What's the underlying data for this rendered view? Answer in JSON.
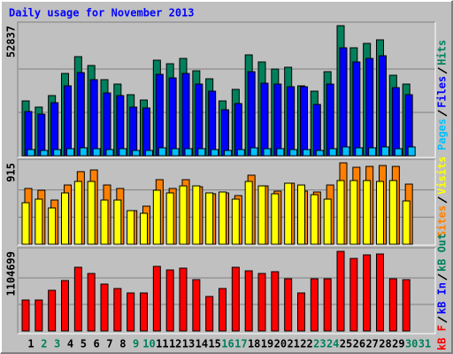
{
  "chart_data": [
    {
      "type": "bar",
      "title": "Daily usage for November 2013",
      "ylim": [
        0,
        52837
      ],
      "yticks": [
        52837
      ],
      "series": [
        {
          "name": "Hits",
          "color": "#00805c",
          "values": [
            22283,
            19768,
            24440,
            33426,
            40254,
            36660,
            30910,
            29112,
            24800,
            22643,
            38817,
            37379,
            39535,
            34504,
            31270,
            22283,
            26956,
            40974,
            38098,
            35223,
            35942,
            28394,
            26237,
            34145,
            52837,
            43850,
            45646,
            47083,
            32707,
            29112,
            null
          ]
        },
        {
          "name": "Files",
          "color": "#0000ff",
          "values": [
            17970,
            16892,
            21564,
            28393,
            33784,
            30909,
            25517,
            24439,
            19767,
            19408,
            33065,
            31627,
            33424,
            29111,
            26236,
            18689,
            21205,
            34143,
            29471,
            29111,
            28033,
            28033,
            20845,
            29111,
            43847,
            38096,
            39534,
            40612,
            27674,
            24799,
            null
          ]
        },
        {
          "name": "Pages",
          "color": "#00c0ff",
          "values": [
            2516,
            2156,
            2516,
            2875,
            3234,
            2875,
            2516,
            2875,
            2156,
            2156,
            3234,
            2875,
            2875,
            2875,
            2516,
            2156,
            2516,
            3234,
            2875,
            2875,
            2516,
            2516,
            2156,
            2875,
            3594,
            3234,
            3234,
            3594,
            2875,
            3594,
            null
          ]
        }
      ]
    },
    {
      "type": "bar",
      "ylim": [
        0,
        915
      ],
      "yticks": [
        915
      ],
      "series": [
        {
          "name": "Sites",
          "color": "#ff8000",
          "values": [
            627,
            607,
            497,
            666,
            816,
            835,
            666,
            627,
            378,
            428,
            726,
            627,
            726,
            646,
            567,
            577,
            547,
            776,
            656,
            597,
            686,
            597,
            587,
            666,
            915,
            865,
            875,
            885,
            875,
            676,
            null
          ]
        },
        {
          "name": "Visits",
          "color": "#ffff00",
          "values": [
            467,
            507,
            408,
            577,
            706,
            706,
            497,
            497,
            378,
            348,
            607,
            577,
            656,
            656,
            577,
            587,
            507,
            706,
            656,
            567,
            686,
            666,
            557,
            507,
            716,
            716,
            716,
            706,
            716,
            487,
            null
          ]
        }
      ]
    },
    {
      "type": "bar",
      "ylim": [
        0,
        1104699
      ],
      "yticks": [
        1104699
      ],
      "categories": [
        "1",
        "2",
        "3",
        "4",
        "5",
        "6",
        "7",
        "8",
        "9",
        "10",
        "11",
        "12",
        "13",
        "14",
        "15",
        "16",
        "17",
        "18",
        "19",
        "20",
        "21",
        "22",
        "23",
        "24",
        "25",
        "26",
        "27",
        "28",
        "29",
        "30",
        "31"
      ],
      "category_colors": [
        "#000000",
        "#00805c",
        "#00805c",
        "#000000",
        "#000000",
        "#000000",
        "#000000",
        "#000000",
        "#00805c",
        "#00805c",
        "#000000",
        "#000000",
        "#000000",
        "#000000",
        "#000000",
        "#00805c",
        "#00805c",
        "#000000",
        "#000000",
        "#000000",
        "#000000",
        "#000000",
        "#00805c",
        "#00805c",
        "#000000",
        "#000000",
        "#000000",
        "#000000",
        "#000000",
        "#00805c",
        "#00805c"
      ],
      "series": [
        {
          "name": "kB F",
          "color": "#ff0000",
          "values": [
            429590,
            429590,
            564604,
            699618,
            883728,
            797810,
            650522,
            589152,
            527782,
            527782,
            896002,
            846906,
            871454,
            711892,
            478686,
            589152,
            883728,
            834632,
            797810,
            822358,
            724166,
            527782,
            724166,
            724166,
            1104699,
            1006468,
            1055564,
            1067838,
            724166,
            711892,
            null
          ]
        }
      ],
      "inactive_series": [
        {
          "name": "kB In",
          "color": "#0000ff"
        },
        {
          "name": "kB Out",
          "color": "#00805c"
        }
      ]
    }
  ]
}
